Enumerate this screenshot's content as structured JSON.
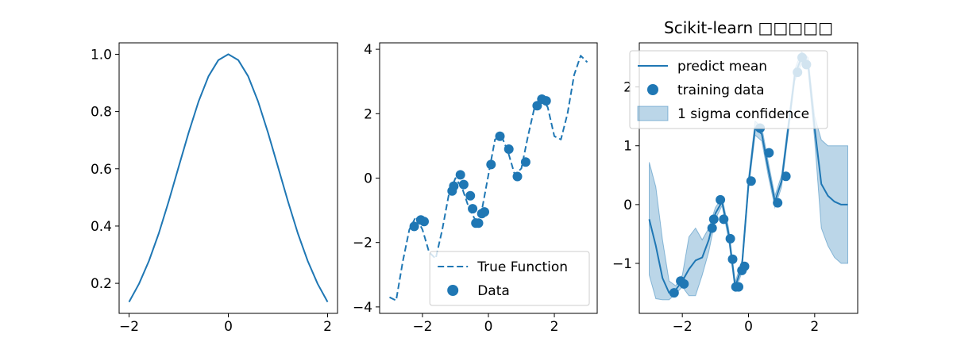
{
  "chart_data": [
    {
      "type": "line",
      "title": "",
      "xlabel": "",
      "ylabel": "",
      "xlim": [
        -2.2,
        2.2
      ],
      "ylim": [
        0.095,
        1.04
      ],
      "xticks": [
        -2,
        0,
        2
      ],
      "xtick_labels": [
        "−2",
        "0",
        "2"
      ],
      "yticks": [
        0.2,
        0.4,
        0.6,
        0.8,
        1.0
      ],
      "ytick_labels": [
        "0.2",
        "0.4",
        "0.6",
        "0.8",
        "1.0"
      ],
      "grid": false,
      "series": [
        {
          "style": "solid",
          "color": "#1f77b4",
          "x": [
            -2.0,
            -1.8,
            -1.6,
            -1.4,
            -1.2,
            -1.0,
            -0.8,
            -0.6,
            -0.4,
            -0.2,
            0.0,
            0.2,
            0.4,
            0.6,
            0.8,
            1.0,
            1.2,
            1.4,
            1.6,
            1.8,
            2.0
          ],
          "y": [
            0.135,
            0.198,
            0.278,
            0.375,
            0.487,
            0.607,
            0.726,
            0.835,
            0.923,
            0.98,
            1.0,
            0.98,
            0.923,
            0.835,
            0.726,
            0.607,
            0.487,
            0.375,
            0.278,
            0.198,
            0.135
          ]
        }
      ]
    },
    {
      "type": "line",
      "title": "",
      "xlabel": "",
      "ylabel": "",
      "xlim": [
        -3.3,
        3.3
      ],
      "ylim": [
        -4.2,
        4.2
      ],
      "xticks": [
        -2,
        0,
        2
      ],
      "xtick_labels": [
        "−2",
        "0",
        "2"
      ],
      "yticks": [
        -4,
        -2,
        0,
        2,
        4
      ],
      "ytick_labels": [
        "−4",
        "−2",
        "0",
        "2",
        "4"
      ],
      "grid": false,
      "legend_position": "lower-right",
      "series": [
        {
          "name": "True Function",
          "style": "dashed",
          "color": "#1f77b4",
          "x": [
            -3.0,
            -2.8,
            -2.6,
            -2.4,
            -2.2,
            -2.0,
            -1.8,
            -1.6,
            -1.4,
            -1.2,
            -1.0,
            -0.8,
            -0.6,
            -0.4,
            -0.2,
            0.0,
            0.2,
            0.4,
            0.6,
            0.8,
            1.0,
            1.2,
            1.4,
            1.6,
            1.8,
            2.0,
            2.2,
            2.4,
            2.6,
            2.8,
            3.0
          ],
          "y": [
            -3.7,
            -3.8,
            -2.6,
            -1.6,
            -1.2,
            -1.6,
            -2.3,
            -2.5,
            -1.6,
            -0.5,
            0.0,
            -0.3,
            -0.9,
            -1.3,
            -1.0,
            0.1,
            1.2,
            1.3,
            0.8,
            0.1,
            0.3,
            1.3,
            2.2,
            2.5,
            2.2,
            1.3,
            1.2,
            2.0,
            3.2,
            3.8,
            3.6
          ]
        },
        {
          "name": "Data",
          "style": "markers",
          "color": "#1f77b4",
          "x": [
            -2.25,
            -2.05,
            -1.95,
            -1.1,
            -1.05,
            -0.85,
            -0.75,
            -0.55,
            -0.48,
            -0.38,
            -0.3,
            -0.2,
            -0.12,
            0.08,
            0.35,
            0.62,
            0.88,
            1.13,
            1.48,
            1.62,
            1.75
          ],
          "y": [
            -1.5,
            -1.3,
            -1.35,
            -0.4,
            -0.25,
            0.1,
            -0.2,
            -0.55,
            -0.95,
            -1.4,
            -1.4,
            -1.1,
            -1.05,
            0.42,
            1.3,
            0.9,
            0.05,
            0.5,
            2.25,
            2.45,
            2.4
          ]
        }
      ]
    },
    {
      "type": "line",
      "title": "Scikit-learn □□□□□",
      "xlabel": "",
      "ylabel": "",
      "xlim": [
        -3.3,
        3.3
      ],
      "ylim": [
        -1.85,
        2.75
      ],
      "xticks": [
        -2,
        0,
        2
      ],
      "xtick_labels": [
        "−2",
        "0",
        "2"
      ],
      "yticks": [
        -1,
        0,
        1,
        2
      ],
      "ytick_labels": [
        "−1",
        "0",
        "1",
        "2"
      ],
      "grid": false,
      "legend_position": "upper-left",
      "series": [
        {
          "name": "predict mean",
          "style": "solid",
          "color": "#1f77b4",
          "x": [
            -3.0,
            -2.8,
            -2.6,
            -2.4,
            -2.2,
            -2.0,
            -1.8,
            -1.6,
            -1.4,
            -1.2,
            -1.0,
            -0.8,
            -0.6,
            -0.4,
            -0.2,
            0.0,
            0.2,
            0.4,
            0.6,
            0.8,
            1.0,
            1.2,
            1.4,
            1.6,
            1.8,
            2.0,
            2.2,
            2.4,
            2.6,
            2.8,
            3.0
          ],
          "y": [
            -0.25,
            -0.7,
            -1.25,
            -1.5,
            -1.45,
            -1.3,
            -1.1,
            -0.95,
            -0.9,
            -0.6,
            -0.15,
            0.05,
            -0.5,
            -1.4,
            -1.05,
            0.35,
            1.3,
            1.2,
            0.6,
            0.05,
            0.4,
            1.3,
            2.2,
            2.5,
            2.4,
            1.3,
            0.35,
            0.15,
            0.05,
            0.0,
            0.0
          ]
        },
        {
          "name": "training data",
          "style": "markers",
          "color": "#1f77b4",
          "x": [
            -2.25,
            -2.05,
            -1.95,
            -1.1,
            -1.05,
            -0.85,
            -0.75,
            -0.55,
            -0.48,
            -0.38,
            -0.3,
            -0.2,
            -0.12,
            0.08,
            0.35,
            0.62,
            0.88,
            1.13,
            1.48,
            1.62,
            1.75
          ],
          "y": [
            -1.5,
            -1.3,
            -1.35,
            -0.4,
            -0.25,
            0.08,
            -0.25,
            -0.58,
            -0.93,
            -1.4,
            -1.4,
            -1.12,
            -1.05,
            0.4,
            1.3,
            0.88,
            0.03,
            0.48,
            2.25,
            2.5,
            2.38
          ]
        },
        {
          "name": "1 sigma confidence",
          "style": "band",
          "color": "#1f77b4",
          "x": [
            -3.0,
            -2.8,
            -2.6,
            -2.4,
            -2.2,
            -2.0,
            -1.8,
            -1.6,
            -1.4,
            -1.2,
            -1.0,
            -0.8,
            -0.6,
            -0.4,
            -0.2,
            0.0,
            0.2,
            0.4,
            0.6,
            0.8,
            1.0,
            1.2,
            1.4,
            1.6,
            1.8,
            2.0,
            2.2,
            2.4,
            2.6,
            2.8,
            3.0
          ],
          "upper": [
            0.72,
            0.3,
            -0.6,
            -1.3,
            -1.38,
            -1.2,
            -0.55,
            -0.4,
            -0.6,
            -0.4,
            -0.05,
            0.12,
            -0.4,
            -1.32,
            -0.95,
            0.45,
            1.42,
            1.32,
            0.72,
            0.15,
            0.5,
            1.4,
            2.3,
            2.6,
            2.5,
            1.5,
            1.1,
            1.0,
            1.0,
            1.0,
            1.0
          ],
          "lower": [
            -1.2,
            -1.6,
            -1.62,
            -1.62,
            -1.52,
            -1.4,
            -1.55,
            -1.55,
            -1.2,
            -0.8,
            -0.25,
            -0.02,
            -0.6,
            -1.48,
            -1.15,
            0.25,
            1.18,
            1.08,
            0.48,
            -0.05,
            0.3,
            1.2,
            2.1,
            2.4,
            2.3,
            1.1,
            -0.4,
            -0.7,
            -0.9,
            -1.0,
            -1.0
          ]
        }
      ]
    }
  ]
}
